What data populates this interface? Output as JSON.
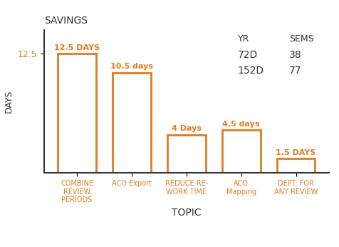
{
  "chart_data": {
    "type": "bar",
    "title": "SAVINGS",
    "x_label": "TOPIC",
    "y_label": "DAYS",
    "categories": [
      "COMBINE REVIEW PERIODS",
      "ACO Export",
      "REDUCE RE-WORK TIME",
      "ACO Mapping",
      "DEPT. FOR ANY REVIEW"
    ],
    "values": [
      12.5,
      10.5,
      4,
      4.5,
      1.5
    ],
    "value_labels": [
      "12.5 DAYS",
      "10.5 days",
      "4 Days",
      "4.5 days",
      "1.5 DAYS"
    ],
    "data_labels": true,
    "color": "#e07b1f",
    "ylim": [
      0,
      15
    ],
    "yticks": [
      12.5
    ],
    "table": {
      "columns": [
        "YR",
        "SEMS"
      ],
      "rows": [
        [
          "72D",
          "38"
        ],
        [
          "152D",
          "77"
        ]
      ]
    }
  }
}
